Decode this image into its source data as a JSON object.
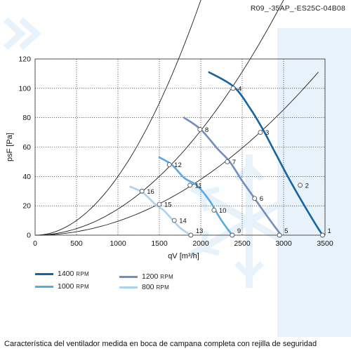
{
  "header": {
    "code": "R09_-35AP_-ES25C-04B08"
  },
  "caption": "Característica del ventilador medida en boca de campana completa con rejilla de seguridad",
  "colors": {
    "rpm1400": "#1565a6",
    "rpm1200": "#6e8fbf",
    "rpm1000": "#5aa9e0",
    "rpm800": "#a9d3f0",
    "system": "#1f1f1f",
    "grid": "#111111",
    "watermark": "#e8f2fb"
  },
  "legend": [
    {
      "value": "1400",
      "unit": "RPM",
      "color_key": "rpm1400"
    },
    {
      "value": "1200",
      "unit": "RPM",
      "color_key": "rpm1200"
    },
    {
      "value": "1000",
      "unit": "RPM",
      "color_key": "rpm1000"
    },
    {
      "value": "800",
      "unit": "RPM",
      "color_key": "rpm800"
    }
  ],
  "chart_data": {
    "type": "line",
    "xlabel": "qV [m³/h]",
    "ylabel": "psF [Pa]",
    "xlim": [
      0,
      3500
    ],
    "ylim": [
      0,
      120
    ],
    "x_ticks": [
      0,
      500,
      1000,
      1500,
      2000,
      2500,
      3000,
      3500
    ],
    "y_ticks": [
      0,
      20,
      40,
      60,
      80,
      100,
      120
    ],
    "grid": true,
    "series": [
      {
        "name": "1400 RPM",
        "color_key": "rpm1400",
        "x": [
          2100,
          2400,
          2600,
          2750,
          2900,
          3050,
          3200,
          3380,
          3470
        ],
        "y": [
          111,
          101,
          86,
          72,
          56,
          40,
          25,
          8,
          0
        ]
      },
      {
        "name": "1200 RPM",
        "color_key": "rpm1200",
        "x": [
          1800,
          2000,
          2200,
          2350,
          2500,
          2650,
          2800,
          2970
        ],
        "y": [
          80,
          72,
          59,
          50,
          37,
          25,
          13,
          0
        ]
      },
      {
        "name": "1000 RPM",
        "color_key": "rpm1000",
        "x": [
          1500,
          1650,
          1800,
          1950,
          2100,
          2250,
          2380
        ],
        "y": [
          53,
          48,
          39,
          34,
          24,
          10,
          0
        ]
      },
      {
        "name": "800 RPM",
        "color_key": "rpm800",
        "x": [
          1150,
          1300,
          1450,
          1550,
          1650,
          1750,
          1880
        ],
        "y": [
          33,
          29,
          21,
          17,
          11,
          5,
          0
        ]
      }
    ],
    "system_curves": [
      {
        "k": 9.5e-06,
        "x_max": 3420
      },
      {
        "k": 1.78e-05,
        "x_max": 3000
      },
      {
        "k": 4e-05,
        "x_max": 2500
      }
    ],
    "operating_points": [
      {
        "label": "1",
        "x": 3470,
        "y": 0
      },
      {
        "label": "2",
        "x": 3200,
        "y": 34
      },
      {
        "label": "3",
        "x": 2720,
        "y": 70
      },
      {
        "label": "4",
        "x": 2390,
        "y": 100
      },
      {
        "label": "5",
        "x": 2950,
        "y": 0
      },
      {
        "label": "6",
        "x": 2650,
        "y": 25
      },
      {
        "label": "7",
        "x": 2320,
        "y": 50
      },
      {
        "label": "8",
        "x": 1990,
        "y": 72
      },
      {
        "label": "9",
        "x": 2380,
        "y": 0
      },
      {
        "label": "10",
        "x": 2160,
        "y": 17
      },
      {
        "label": "11",
        "x": 1870,
        "y": 34
      },
      {
        "label": "12",
        "x": 1620,
        "y": 48
      },
      {
        "label": "13",
        "x": 1880,
        "y": 0
      },
      {
        "label": "14",
        "x": 1680,
        "y": 10
      },
      {
        "label": "15",
        "x": 1500,
        "y": 21
      },
      {
        "label": "16",
        "x": 1290,
        "y": 30
      }
    ]
  }
}
